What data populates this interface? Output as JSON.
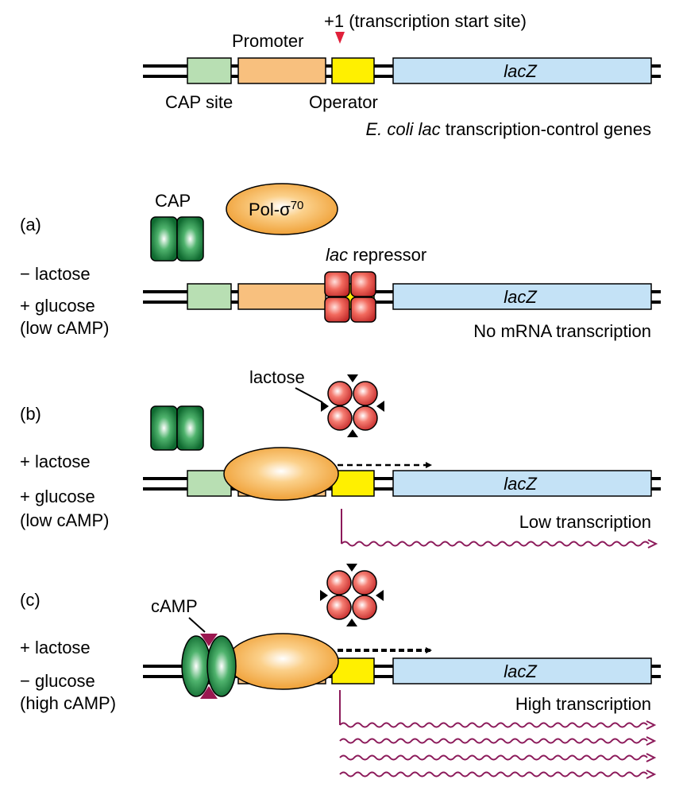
{
  "title": "E. coli lac transcription-control genes",
  "title_parts": {
    "organism": "E. coli",
    "gene": "lac",
    "rest": "transcription-control genes"
  },
  "top": {
    "start_site_label": "+1 (transcription start site)",
    "promoter_label": "Promoter",
    "cap_site_label": "CAP site",
    "operator_label": "Operator",
    "gene_label": "lacZ"
  },
  "panel_a": {
    "tag": "(a)",
    "conditions": [
      "− lactose",
      "+ glucose",
      "(low cAMP)"
    ],
    "cap_label": "CAP",
    "pol_label": "Pol-σ",
    "pol_superscript": "70",
    "repressor_label_italic": "lac",
    "repressor_label_rest": "repressor",
    "gene_label": "lacZ",
    "outcome": "No mRNA transcription"
  },
  "panel_b": {
    "tag": "(b)",
    "conditions": [
      "+ lactose",
      "+  glucose",
      "(low cAMP)"
    ],
    "lactose_label": "lactose",
    "gene_label": "lacZ",
    "outcome": "Low transcription"
  },
  "panel_c": {
    "tag": "(c)",
    "conditions": [
      "+ lactose",
      "− glucose",
      "(high cAMP)"
    ],
    "camp_label": "cAMP",
    "gene_label": "lacZ",
    "outcome": "High transcription"
  },
  "colors": {
    "cap_site": "#b8dfb3",
    "promoter": "#f8c07e",
    "operator": "#fff000",
    "lacz": "#c4e2f6",
    "mrna": "#8c1a5a",
    "start_arrow": "#e0203a",
    "cap_protein": "#1f8a42",
    "polymerase": "#f2a43c",
    "repressor": "#e8504c",
    "camp": "#9a1850"
  }
}
